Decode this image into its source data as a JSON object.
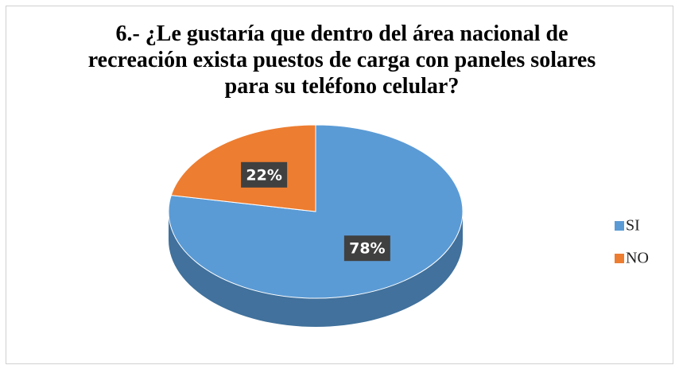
{
  "chart_data": {
    "type": "pie",
    "title": "6.- ¿Le gustaría que dentro del área nacional de recreación exista puestos de carga con paneles solares para su teléfono celular?",
    "categories": [
      "SI",
      "NO"
    ],
    "values": [
      78,
      22
    ],
    "value_labels": [
      "78%",
      "22%"
    ],
    "colors": [
      "#5b9bd5",
      "#ed7d31"
    ],
    "side_colors": [
      "#41719c",
      "#ae5a21"
    ],
    "legend": "right"
  }
}
